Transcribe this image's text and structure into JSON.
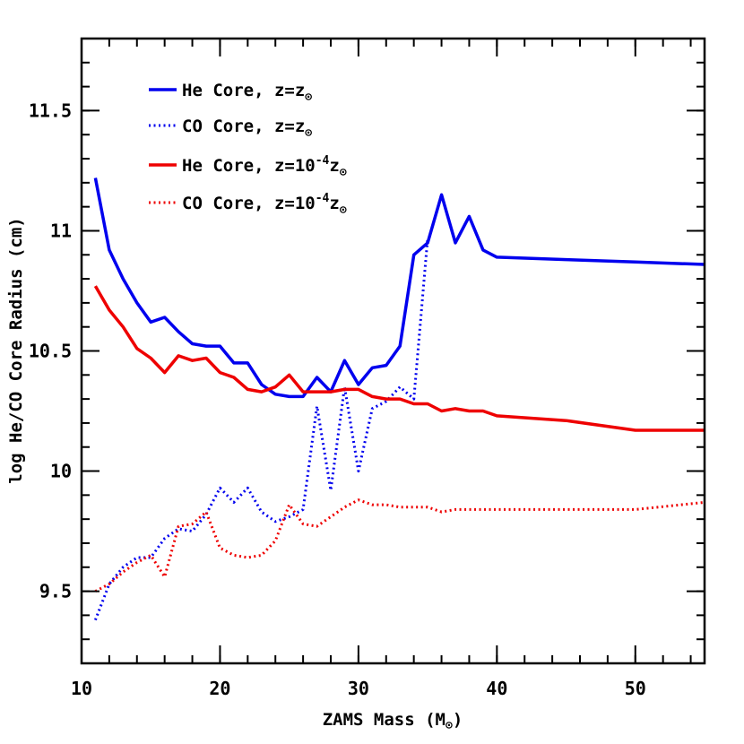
{
  "chart_data": {
    "type": "line",
    "xlabel": "ZAMS Mass (M",
    "xlabel_symbol": "⊙",
    "xlabel_close": ")",
    "ylabel": "log He/CO Core Radius (cm)",
    "xlim": [
      10,
      55
    ],
    "ylim": [
      9.2,
      11.8
    ],
    "x_ticks": [
      10,
      20,
      30,
      40,
      50
    ],
    "x_tick_labels": [
      "10",
      "20",
      "30",
      "40",
      "50"
    ],
    "y_ticks": [
      9.5,
      10,
      10.5,
      11,
      11.5
    ],
    "y_tick_labels": [
      "9.5",
      "10",
      "10.5",
      "11",
      "11.5"
    ],
    "grid": false,
    "legend_position": "top-left",
    "series": [
      {
        "name": "He Core, z=z⊙",
        "legend": {
          "text": "He Core, z=z",
          "sub": "⊙"
        },
        "color": "#0000ee",
        "style": "solid",
        "x": [
          11,
          12,
          13,
          14,
          15,
          16,
          17,
          18,
          19,
          20,
          21,
          22,
          23,
          24,
          25,
          26,
          27,
          28,
          29,
          30,
          31,
          32,
          33,
          34,
          35,
          36,
          37,
          38,
          39,
          40,
          45,
          50,
          55
        ],
        "y": [
          11.22,
          10.92,
          10.8,
          10.7,
          10.62,
          10.64,
          10.58,
          10.53,
          10.52,
          10.52,
          10.45,
          10.45,
          10.36,
          10.32,
          10.31,
          10.31,
          10.39,
          10.33,
          10.46,
          10.36,
          10.43,
          10.44,
          10.52,
          10.9,
          10.95,
          11.15,
          10.95,
          11.06,
          10.92,
          10.89,
          10.88,
          10.87,
          10.86
        ]
      },
      {
        "name": "CO Core, z=z⊙",
        "legend": {
          "text": "CO Core, z=z",
          "sub": "⊙"
        },
        "color": "#0000ee",
        "style": "dotted",
        "x": [
          11,
          12,
          13,
          14,
          15,
          16,
          17,
          18,
          19,
          20,
          21,
          22,
          23,
          24,
          25,
          26,
          27,
          28,
          29,
          30,
          31,
          32,
          33,
          34,
          35
        ],
        "y": [
          9.38,
          9.53,
          9.6,
          9.64,
          9.64,
          9.72,
          9.76,
          9.75,
          9.82,
          9.93,
          9.87,
          9.93,
          9.83,
          9.79,
          9.81,
          9.84,
          10.27,
          9.92,
          10.35,
          10.0,
          10.26,
          10.29,
          10.35,
          10.3,
          10.97
        ]
      },
      {
        "name": "He Core, z=10⁻⁴z⊙",
        "legend": {
          "text": "He Core, z=10",
          "sup": "-4",
          "tail": "z",
          "sub": "⊙"
        },
        "color": "#ee0000",
        "style": "solid",
        "x": [
          11,
          12,
          13,
          14,
          15,
          16,
          17,
          18,
          19,
          20,
          21,
          22,
          23,
          24,
          25,
          26,
          27,
          28,
          29,
          30,
          31,
          32,
          33,
          34,
          35,
          36,
          37,
          38,
          39,
          40,
          45,
          50,
          55
        ],
        "y": [
          10.77,
          10.67,
          10.6,
          10.51,
          10.47,
          10.41,
          10.48,
          10.46,
          10.47,
          10.41,
          10.39,
          10.34,
          10.33,
          10.35,
          10.4,
          10.33,
          10.33,
          10.33,
          10.34,
          10.34,
          10.31,
          10.3,
          10.3,
          10.28,
          10.28,
          10.25,
          10.26,
          10.25,
          10.25,
          10.23,
          10.21,
          10.17,
          10.17
        ]
      },
      {
        "name": "CO Core, z=10⁻⁴z⊙",
        "legend": {
          "text": "CO Core, z=10",
          "sup": "-4",
          "tail": "z",
          "sub": "⊙"
        },
        "color": "#ee0000",
        "style": "dotted",
        "x": [
          11,
          12,
          13,
          14,
          15,
          16,
          17,
          18,
          19,
          20,
          21,
          22,
          23,
          24,
          25,
          26,
          27,
          28,
          29,
          30,
          31,
          32,
          33,
          34,
          35,
          36,
          37,
          38,
          39,
          40,
          45,
          50,
          55
        ],
        "y": [
          9.5,
          9.53,
          9.58,
          9.62,
          9.65,
          9.56,
          9.77,
          9.78,
          9.83,
          9.68,
          9.65,
          9.64,
          9.65,
          9.71,
          9.86,
          9.78,
          9.77,
          9.81,
          9.85,
          9.88,
          9.86,
          9.86,
          9.85,
          9.85,
          9.85,
          9.83,
          9.84,
          9.84,
          9.84,
          9.84,
          9.84,
          9.84,
          9.87
        ]
      }
    ]
  }
}
